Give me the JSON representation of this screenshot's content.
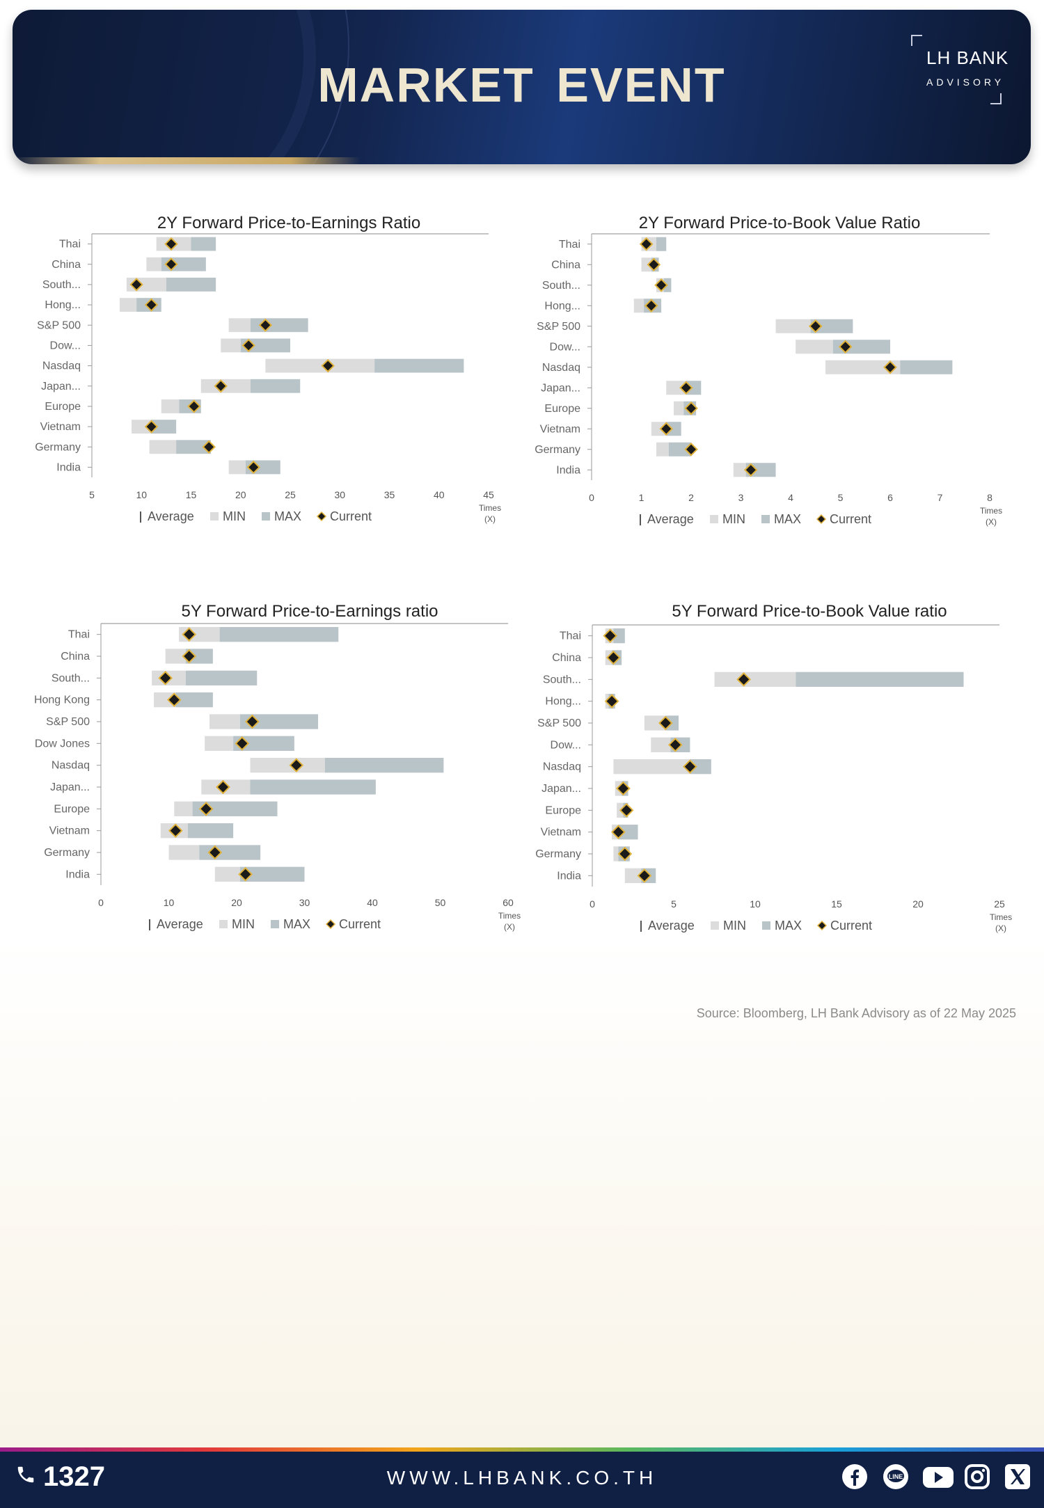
{
  "header": {
    "title": "MARKET EVENT",
    "logo_name": "LH BANK",
    "logo_sub": "ADVISORY"
  },
  "legend": {
    "average": "Average",
    "min": "MIN",
    "max": "MAX",
    "current": "Current"
  },
  "colors": {
    "min": "#dcdcdc",
    "max": "#b9c4c9",
    "current": "#1a1a1a",
    "current_outline": "#e0b23a",
    "header_bg": "#13254e",
    "footer_bg": "#102045"
  },
  "chart_data": [
    {
      "id": "pe2y",
      "type": "bar",
      "title": "2Y Forward Price-to-Earnings Ratio",
      "xlabel": "Times (X)",
      "xlim": [
        5,
        45
      ],
      "ticks": [
        5,
        10,
        15,
        20,
        25,
        30,
        35,
        40,
        45
      ],
      "categories": [
        "Thai",
        "China",
        "South...",
        "Hong...",
        "S&P 500",
        "Dow...",
        "Nasdaq",
        "Japan...",
        "Europe",
        "Vietnam",
        "Germany",
        "India"
      ],
      "series": [
        {
          "name": "MIN",
          "values": [
            11.5,
            10.5,
            8.5,
            7.8,
            18.8,
            18.0,
            22.5,
            16.0,
            12.0,
            9.0,
            10.8,
            18.8
          ]
        },
        {
          "name": "Average",
          "values": [
            15.0,
            12.0,
            12.5,
            9.5,
            21.0,
            20.0,
            33.5,
            21.0,
            13.8,
            11.0,
            13.5,
            20.5
          ]
        },
        {
          "name": "MAX",
          "values": [
            17.5,
            16.5,
            17.5,
            12.0,
            26.8,
            25.0,
            42.5,
            26.0,
            16.0,
            13.5,
            17.0,
            24.0
          ]
        },
        {
          "name": "Current",
          "values": [
            13.0,
            13.0,
            9.5,
            11.0,
            22.5,
            20.8,
            28.8,
            18.0,
            15.3,
            11.0,
            16.8,
            21.3
          ]
        }
      ]
    },
    {
      "id": "pb2y",
      "type": "bar",
      "title": "2Y Forward Price-to-Book Value Ratio",
      "xlabel": "Times (X)",
      "xlim": [
        0,
        8
      ],
      "ticks": [
        0,
        1,
        2,
        3,
        4,
        5,
        6,
        7,
        8
      ],
      "categories": [
        "Thai",
        "China",
        "South...",
        "Hong...",
        "S&P 500",
        "Dow...",
        "Nasdaq",
        "Japan...",
        "Europe",
        "Vietnam",
        "Germany",
        "India"
      ],
      "series": [
        {
          "name": "MIN",
          "values": [
            1.0,
            1.0,
            1.3,
            0.85,
            3.7,
            4.1,
            4.7,
            1.5,
            1.65,
            1.2,
            1.3,
            2.85
          ]
        },
        {
          "name": "Average",
          "values": [
            1.3,
            1.2,
            1.45,
            1.05,
            4.4,
            4.85,
            6.2,
            1.9,
            1.85,
            1.5,
            1.55,
            3.1
          ]
        },
        {
          "name": "MAX",
          "values": [
            1.5,
            1.35,
            1.6,
            1.4,
            5.25,
            6.0,
            7.25,
            2.2,
            2.1,
            1.8,
            2.0,
            3.7
          ]
        },
        {
          "name": "Current",
          "values": [
            1.1,
            1.25,
            1.4,
            1.2,
            4.5,
            5.1,
            6.0,
            1.9,
            2.0,
            1.5,
            2.0,
            3.2
          ]
        }
      ]
    },
    {
      "id": "pe5y",
      "type": "bar",
      "title": "5Y Forward Price-to-Earnings ratio",
      "xlabel": "Times (X)",
      "xlim": [
        0,
        60
      ],
      "ticks": [
        0,
        10,
        20,
        30,
        40,
        50,
        60
      ],
      "categories": [
        "Thai",
        "China",
        "South...",
        "Hong Kong",
        "S&P 500",
        "Dow Jones",
        "Nasdaq",
        "Japan...",
        "Europe",
        "Vietnam",
        "Germany",
        "India"
      ],
      "series": [
        {
          "name": "MIN",
          "values": [
            11.5,
            9.5,
            7.5,
            7.8,
            16.0,
            15.3,
            22.0,
            14.8,
            10.8,
            8.8,
            10.0,
            16.8
          ]
        },
        {
          "name": "Average",
          "values": [
            17.5,
            12.5,
            12.5,
            11.0,
            20.5,
            19.5,
            33.0,
            22.0,
            13.5,
            12.8,
            14.5,
            20.5
          ]
        },
        {
          "name": "MAX",
          "values": [
            35.0,
            16.5,
            23.0,
            16.5,
            32.0,
            28.5,
            50.5,
            40.5,
            26.0,
            19.5,
            23.5,
            30.0
          ]
        },
        {
          "name": "Current",
          "values": [
            13.0,
            13.0,
            9.5,
            10.8,
            22.3,
            20.8,
            28.8,
            18.0,
            15.5,
            11.0,
            16.8,
            21.3
          ]
        }
      ]
    },
    {
      "id": "pb5y",
      "type": "bar",
      "title": "5Y Forward Price-to-Book Value ratio",
      "xlabel": "Times (X)",
      "xlim": [
        0,
        25
      ],
      "ticks": [
        0,
        5,
        10,
        15,
        20,
        25
      ],
      "categories": [
        "Thai",
        "China",
        "South...",
        "Hong...",
        "S&P 500",
        "Dow...",
        "Nasdaq",
        "Japan...",
        "Europe",
        "Vietnam",
        "Germany",
        "India"
      ],
      "series": [
        {
          "name": "MIN",
          "values": [
            0.8,
            0.8,
            7.5,
            0.8,
            3.2,
            3.6,
            1.3,
            1.4,
            1.5,
            1.2,
            1.3,
            2.0
          ]
        },
        {
          "name": "Average",
          "values": [
            1.3,
            1.2,
            12.5,
            1.0,
            4.5,
            4.8,
            6.0,
            1.8,
            1.9,
            1.6,
            1.6,
            3.0
          ]
        },
        {
          "name": "MAX",
          "values": [
            2.0,
            1.8,
            22.8,
            1.4,
            5.3,
            6.0,
            7.3,
            2.2,
            2.2,
            2.8,
            2.3,
            3.9
          ]
        },
        {
          "name": "Current",
          "values": [
            1.1,
            1.3,
            9.3,
            1.2,
            4.5,
            5.1,
            6.0,
            1.9,
            2.1,
            1.6,
            2.0,
            3.2
          ]
        }
      ]
    }
  ],
  "source": "Source: Bloomberg,  LH Bank Advisory  as of 22 May 2025",
  "footer": {
    "phone": "1327",
    "url": "WWW.LHBANK.CO.TH",
    "social_icons": [
      "facebook-icon",
      "line-icon",
      "youtube-icon",
      "instagram-icon",
      "x-icon"
    ]
  }
}
